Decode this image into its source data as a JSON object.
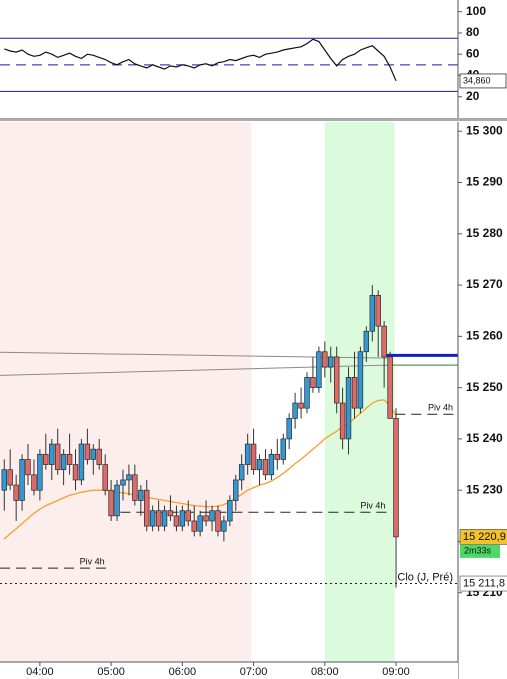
{
  "chart_data": [
    {
      "type": "line",
      "x": [
        3.5,
        3.583,
        3.667,
        3.75,
        3.833,
        3.917,
        4,
        4.083,
        4.167,
        4.25,
        4.333,
        4.417,
        4.5,
        4.583,
        4.667,
        4.75,
        4.833,
        4.917,
        5,
        5.083,
        5.167,
        5.25,
        5.333,
        5.417,
        5.5,
        5.583,
        5.667,
        5.75,
        5.833,
        5.917,
        6,
        6.083,
        6.167,
        6.25,
        6.333,
        6.417,
        6.5,
        6.583,
        6.667,
        6.75,
        6.833,
        6.917,
        7,
        7.083,
        7.167,
        7.25,
        7.333,
        7.417,
        7.5,
        7.583,
        7.667,
        7.75,
        7.833,
        7.917,
        8,
        8.083,
        8.167,
        8.25,
        8.333,
        8.417,
        8.5,
        8.583,
        8.667,
        8.75,
        8.833,
        8.917,
        9
      ],
      "series": [
        {
          "color": "#111111",
          "values": [
            65,
            63,
            62,
            64,
            60,
            58,
            59,
            62,
            60,
            57,
            59,
            61,
            58,
            56,
            60,
            59,
            57,
            55,
            52,
            50,
            53,
            55,
            51,
            49,
            47,
            50,
            48,
            46,
            49,
            48,
            50,
            49,
            47,
            50,
            51,
            49,
            52,
            53,
            55,
            54,
            56,
            58,
            59,
            57,
            60,
            61,
            62,
            64,
            65,
            66,
            67,
            70,
            74,
            72,
            64,
            56,
            49,
            55,
            58,
            60,
            64,
            66,
            68,
            63,
            58,
            48,
            35
          ]
        }
      ],
      "xlim": [
        3.44,
        9.87
      ],
      "ylim": [
        0,
        111
      ],
      "yticks": [
        20,
        40,
        60,
        80,
        100
      ],
      "levels": [
        {
          "value": 75,
          "color": "#1a1aa8",
          "style": "solid"
        },
        {
          "value": 50,
          "color": "#1a1aa8",
          "style": "dash"
        },
        {
          "value": 25,
          "color": "#1a1aa8",
          "style": "solid"
        }
      ],
      "last_label": {
        "value": 34.86,
        "label": "34,860"
      }
    },
    {
      "type": "candlestick",
      "x": [
        3.5,
        3.583,
        3.667,
        3.75,
        3.833,
        3.917,
        4,
        4.083,
        4.167,
        4.25,
        4.333,
        4.417,
        4.5,
        4.583,
        4.667,
        4.75,
        4.833,
        4.917,
        5,
        5.083,
        5.167,
        5.25,
        5.333,
        5.417,
        5.5,
        5.583,
        5.667,
        5.75,
        5.833,
        5.917,
        6,
        6.083,
        6.167,
        6.25,
        6.333,
        6.417,
        6.5,
        6.583,
        6.667,
        6.75,
        6.833,
        6.917,
        7,
        7.083,
        7.167,
        7.25,
        7.333,
        7.417,
        7.5,
        7.583,
        7.667,
        7.75,
        7.833,
        7.917,
        8,
        8.083,
        8.167,
        8.25,
        8.333,
        8.417,
        8.5,
        8.583,
        8.667,
        8.75,
        8.833,
        8.917,
        9
      ],
      "open": [
        15230,
        15234,
        15231,
        15228,
        15236,
        15233,
        15230,
        15237,
        15235,
        15239,
        15234,
        15237,
        15235,
        15232,
        15239,
        15236,
        15238,
        15235,
        15230,
        15225,
        15231,
        15232,
        15233,
        15228,
        15230,
        15223,
        15226,
        15223,
        15226,
        15225,
        15223,
        15226,
        15224,
        15222,
        15225,
        15224,
        15226,
        15222,
        15224,
        15228,
        15232,
        15235,
        15239,
        15234,
        15236,
        15233,
        15237,
        15236,
        15240,
        15244,
        15247,
        15246,
        15252,
        15250,
        15257,
        15254,
        15256,
        15247,
        15240,
        15252,
        15246,
        15257,
        15261,
        15268,
        15262,
        15256,
        15244
      ],
      "high": [
        15236,
        15238,
        15233,
        15237,
        15239,
        15236,
        15238,
        15241,
        15240,
        15242,
        15238,
        15241,
        15238,
        15240,
        15242,
        15239,
        15240,
        15237,
        15232,
        15232,
        15234,
        15235,
        15235,
        15231,
        15232,
        15227,
        15228,
        15227,
        15229,
        15227,
        15227,
        15228,
        15227,
        15226,
        15228,
        15227,
        15227,
        15225,
        15229,
        15233,
        15237,
        15241,
        15242,
        15237,
        15238,
        15238,
        15240,
        15241,
        15245,
        15249,
        15250,
        15253,
        15256,
        15258,
        15259,
        15258,
        15258,
        15250,
        15254,
        15257,
        15258,
        15262,
        15270,
        15269,
        15263,
        15257,
        15246
      ],
      "low": [
        15226,
        15230,
        15224,
        15226,
        15231,
        15229,
        15228,
        15234,
        15232,
        15233,
        15231,
        15233,
        15230,
        15231,
        15235,
        15233,
        15234,
        15229,
        15224,
        15224,
        15228,
        15229,
        15227,
        15225,
        15222,
        15222,
        15222,
        15222,
        15224,
        15222,
        15222,
        15223,
        15221,
        15221,
        15223,
        15222,
        15221,
        15220,
        15223,
        15226,
        15230,
        15233,
        15233,
        15231,
        15232,
        15232,
        15234,
        15235,
        15238,
        15242,
        15244,
        15245,
        15249,
        15249,
        15252,
        15251,
        15245,
        15238,
        15237,
        15244,
        15245,
        15255,
        15259,
        15256,
        15250,
        15244,
        15211
      ],
      "close": [
        15234,
        15231,
        15228,
        15236,
        15233,
        15230,
        15237,
        15235,
        15239,
        15234,
        15237,
        15235,
        15232,
        15239,
        15236,
        15238,
        15235,
        15230,
        15225,
        15231,
        15232,
        15233,
        15228,
        15230,
        15223,
        15226,
        15223,
        15226,
        15225,
        15223,
        15226,
        15224,
        15222,
        15225,
        15224,
        15226,
        15222,
        15224,
        15228,
        15232,
        15235,
        15239,
        15234,
        15236,
        15233,
        15237,
        15236,
        15240,
        15244,
        15247,
        15246,
        15252,
        15250,
        15257,
        15254,
        15256,
        15247,
        15240,
        15252,
        15246,
        15257,
        15261,
        15268,
        15262,
        15256,
        15244,
        15220.9
      ],
      "up_color": "#3597d3",
      "down_color": "#df6a6a",
      "ma": {
        "color": "#f5a02a",
        "values": [
          15220.5,
          15221.5,
          15222.5,
          15223.5,
          15224.5,
          15225.5,
          15226.3,
          15227,
          15227.5,
          15228,
          15228.5,
          15229,
          15229.3,
          15229.6,
          15229.8,
          15230,
          15230,
          15230,
          15229.8,
          15229.6,
          15229.5,
          15229.3,
          15229,
          15228.8,
          15228.6,
          15228.4,
          15228.2,
          15228,
          15227.8,
          15227.6,
          15227.4,
          15227.2,
          15227,
          15226.9,
          15226.8,
          15226.8,
          15226.9,
          15227.2,
          15227.8,
          15228.5,
          15229.2,
          15230,
          15230.5,
          15231,
          15231.3,
          15231.8,
          15232.5,
          15233.3,
          15234.2,
          15235.2,
          15236,
          15237,
          15238,
          15239,
          15240,
          15240.8,
          15241.5,
          15242.5,
          15243,
          15244,
          15245,
          15246,
          15247,
          15247.5,
          15247.6,
          15246.5,
          15244.5
        ]
      },
      "xlim": [
        3.44,
        9.87
      ],
      "xticks": [
        {
          "value": 4,
          "label": "04:00"
        },
        {
          "value": 5,
          "label": "05:00"
        },
        {
          "value": 6,
          "label": "06:00"
        },
        {
          "value": 7,
          "label": "07:00"
        },
        {
          "value": 8,
          "label": "08:00"
        },
        {
          "value": 9,
          "label": "09:00"
        }
      ],
      "ylim": [
        15196.5,
        15301.8
      ],
      "yticks": [
        {
          "value": 15210,
          "label": "15 210"
        },
        {
          "value": 15220,
          "label": "15 220"
        },
        {
          "value": 15230,
          "label": "15 230"
        },
        {
          "value": 15240,
          "label": "15 240"
        },
        {
          "value": 15250,
          "label": "15 250"
        },
        {
          "value": 15260,
          "label": "15 260"
        },
        {
          "value": 15270,
          "label": "15 270"
        },
        {
          "value": 15280,
          "label": "15 280"
        },
        {
          "value": 15290,
          "label": "15 290"
        },
        {
          "value": 15300,
          "label": "15 300"
        }
      ],
      "sessions": [
        {
          "x": [
            3.44,
            6.97
          ],
          "color": "#fdeeee"
        },
        {
          "x": [
            8.0,
            8.98
          ],
          "color": "#dcfbdc"
        }
      ],
      "trendlines": [
        {
          "x": [
            3.44,
            8.92
          ],
          "y": [
            15256.9,
            15255.75
          ],
          "color": "#8a8a8a"
        },
        {
          "x": [
            3.44,
            8.92
          ],
          "y": [
            15252.4,
            15254.4
          ],
          "color": "#8a8a8a"
        }
      ],
      "levels": [
        {
          "value": 15244.8,
          "x": [
            8.99,
            9.87
          ],
          "label": "Piv 4h",
          "style": "dash",
          "color": "#222222"
        },
        {
          "value": 15225.7,
          "x": [
            5.13,
            8.92
          ],
          "label": "Piv 4h",
          "style": "dash",
          "color": "#222222"
        },
        {
          "value": 15214.8,
          "x": [
            3.44,
            4.98
          ],
          "label": "Piv 4h",
          "style": "dash",
          "color": "#222222"
        },
        {
          "value": 15211.8,
          "x": [
            3.44,
            9.87
          ],
          "label": "Clo (J, Pré)",
          "style": "dot",
          "color": "#222222"
        },
        {
          "value": 15256.3,
          "x": [
            8.85,
            9.87
          ],
          "style": "solid",
          "color": "#1020c8"
        },
        {
          "value": 15254.4,
          "x": [
            8.92,
            9.87
          ],
          "style": "solid",
          "color": "#2e7d32"
        }
      ],
      "tags": [
        {
          "value": 15220.9,
          "label": "15 220,9",
          "color": "#f2c12e"
        },
        {
          "value": 15211.8,
          "label": "15 211,8",
          "color": "#ffffff"
        }
      ],
      "countdown": {
        "label": "2m33s",
        "color": "#4cd964"
      }
    }
  ]
}
